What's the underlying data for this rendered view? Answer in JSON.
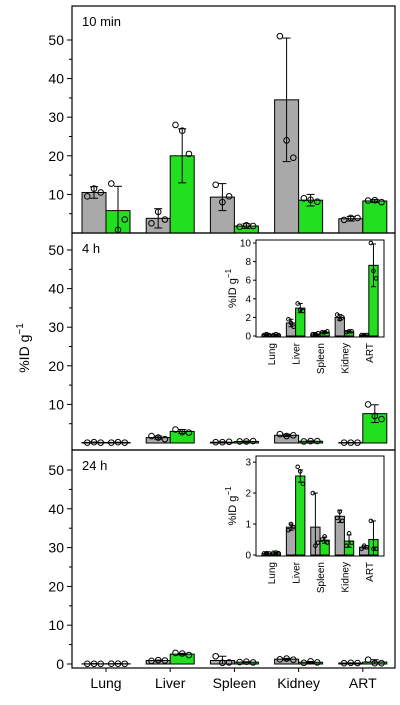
{
  "ylabel_main": "%ID g",
  "ylabel_main_sup": "−1",
  "x_categories": [
    "Lung",
    "Liver",
    "Spleen",
    "Kidney",
    "ART"
  ],
  "colors": {
    "group1": "#a9a9a9",
    "group2": "#22e01f",
    "stroke": "#000000"
  },
  "chart_data": [
    {
      "type": "bar",
      "title": "10 min",
      "categories": [
        "Lung",
        "Liver",
        "Spleen",
        "Kidney",
        "ART"
      ],
      "ylim": [
        0,
        55
      ],
      "yticks": [
        10,
        20,
        30,
        40,
        50
      ],
      "series": [
        {
          "values": [
            10.5,
            3.8,
            9.3,
            34.5,
            3.7
          ],
          "errors": [
            1.5,
            2.5,
            3.5,
            16,
            0.6
          ],
          "points": [
            [
              9.5,
              11.5,
              10.5
            ],
            [
              2.5,
              5.5,
              3.5
            ],
            [
              12.5,
              8.0,
              9.5
            ],
            [
              51,
              24,
              19.5
            ],
            [
              3.4,
              3.9,
              3.9
            ]
          ]
        },
        {
          "values": [
            5.8,
            20,
            1.8,
            8.5,
            8.3
          ],
          "errors": [
            6.3,
            7.0,
            0.6,
            1.5,
            0.4
          ],
          "points": [
            [
              12.8,
              0.8,
              3.5
            ],
            [
              28,
              26.5,
              20.5
            ],
            [
              1.6,
              2.0,
              1.8
            ],
            [
              9,
              8.6,
              8.1
            ],
            [
              8.4,
              8.5,
              8.0
            ]
          ]
        }
      ]
    },
    {
      "type": "bar",
      "title": "4 h",
      "categories": [
        "Lung",
        "Liver",
        "Spleen",
        "Kidney",
        "ART"
      ],
      "ylim": [
        0,
        55
      ],
      "yticks": [
        10,
        20,
        30,
        40,
        50
      ],
      "series": [
        {
          "values": [
            0.15,
            1.4,
            0.2,
            2.0,
            0.1
          ],
          "errors": [
            0.1,
            0.4,
            0.1,
            0.3,
            0.05
          ],
          "points": [
            [
              0.1,
              0.2,
              0.1
            ],
            [
              1.8,
              1.4,
              1.0
            ],
            [
              0.2,
              0.2,
              0.3
            ],
            [
              2.3,
              1.8,
              2.0
            ],
            [
              0.1,
              0.1,
              0.1
            ]
          ]
        },
        {
          "values": [
            0.15,
            3.0,
            0.4,
            0.45,
            7.6
          ],
          "errors": [
            0.05,
            0.5,
            0.1,
            0.1,
            2.3
          ],
          "points": [
            [
              0.1,
              0.2,
              0.1
            ],
            [
              3.5,
              2.8,
              2.7
            ],
            [
              0.4,
              0.4,
              0.5
            ],
            [
              0.4,
              0.5,
              0.5
            ],
            [
              10.0,
              7.0,
              6.2
            ]
          ]
        }
      ],
      "inset": {
        "ylabel": "%ID g",
        "ylabel_sup": "−1",
        "ylim": [
          0,
          10
        ],
        "yticks": [
          0,
          2,
          4,
          6,
          8,
          10
        ],
        "series_same_as_parent": true
      }
    },
    {
      "type": "bar",
      "title": "24 h",
      "categories": [
        "Lung",
        "Liver",
        "Spleen",
        "Kidney",
        "ART"
      ],
      "ylim": [
        0,
        55
      ],
      "yticks": [
        0,
        10,
        20,
        30,
        40,
        50
      ],
      "series": [
        {
          "values": [
            0.05,
            0.9,
            0.9,
            1.25,
            0.25
          ],
          "errors": [
            0.03,
            0.1,
            1.1,
            0.2,
            0.05
          ],
          "points": [
            [
              0.05,
              0.06,
              0.05
            ],
            [
              0.8,
              1.0,
              0.9
            ],
            [
              2.0,
              0.3,
              0.4
            ],
            [
              1.2,
              1.4,
              1.1
            ],
            [
              0.2,
              0.3,
              0.25
            ]
          ]
        },
        {
          "values": [
            0.07,
            2.55,
            0.48,
            0.45,
            0.5
          ],
          "errors": [
            0.02,
            0.2,
            0.1,
            0.2,
            0.6
          ],
          "points": [
            [
              0.07,
              0.08,
              0.06
            ],
            [
              2.85,
              2.7,
              2.3
            ],
            [
              0.5,
              0.6,
              0.4
            ],
            [
              0.3,
              0.7,
              0.4
            ],
            [
              1.1,
              0.2,
              0.2
            ]
          ]
        }
      ],
      "inset": {
        "ylabel": "%ID g",
        "ylabel_sup": "−1",
        "ylim": [
          0,
          3.1
        ],
        "yticks": [
          0,
          1,
          2,
          3
        ],
        "series_same_as_parent": true
      }
    }
  ]
}
